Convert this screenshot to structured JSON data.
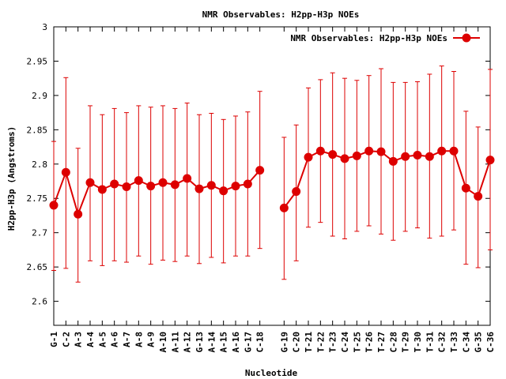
{
  "chart_data": {
    "type": "line",
    "title": "NMR Observables: H2pp-H3p NOEs",
    "xlabel": "Nucleotide",
    "ylabel": "H2pp-H3p (Angstroms)",
    "ylim": [
      2.565,
      3.0
    ],
    "yticks": [
      "3",
      "2.95",
      "2.9",
      "2.85",
      "2.8",
      "2.75",
      "2.7",
      "2.65",
      "2.6"
    ],
    "ytick_values": [
      3.0,
      2.95,
      2.9,
      2.85,
      2.8,
      2.75,
      2.7,
      2.65,
      2.6
    ],
    "legend_position": "top-right",
    "line_color": "#dd0000",
    "categories": [
      "G-1",
      "C-2",
      "A-3",
      "A-4",
      "A-5",
      "A-6",
      "A-7",
      "A-8",
      "A-9",
      "A-10",
      "A-11",
      "A-12",
      "G-13",
      "A-14",
      "A-15",
      "A-16",
      "G-17",
      "C-18",
      "G-19",
      "C-20",
      "T-21",
      "T-22",
      "T-23",
      "C-24",
      "T-25",
      "T-26",
      "T-27",
      "C-28",
      "T-29",
      "T-30",
      "T-31",
      "C-32",
      "T-33",
      "C-34",
      "G-35",
      "C-36"
    ],
    "positions": [
      1,
      2,
      3,
      4,
      5,
      6,
      7,
      8,
      9,
      10,
      11,
      12,
      13,
      14,
      15,
      16,
      17,
      18,
      20,
      21,
      22,
      23,
      24,
      25,
      26,
      27,
      28,
      29,
      30,
      31,
      32,
      33,
      34,
      35,
      36,
      37
    ],
    "xlim": [
      1,
      37
    ],
    "segments": [
      [
        0,
        17
      ],
      [
        18,
        35
      ]
    ],
    "series": [
      {
        "name": "NMR Observables: H2pp-H3p NOEs",
        "values": [
          2.74,
          2.788,
          2.727,
          2.773,
          2.763,
          2.771,
          2.767,
          2.776,
          2.768,
          2.773,
          2.77,
          2.779,
          2.764,
          2.769,
          2.761,
          2.768,
          2.771,
          2.791,
          2.736,
          2.76,
          2.81,
          2.819,
          2.814,
          2.808,
          2.812,
          2.819,
          2.818,
          2.804,
          2.811,
          2.813,
          2.811,
          2.819,
          2.819,
          2.765,
          2.753,
          2.806
        ],
        "err_low": [
          2.645,
          2.648,
          2.628,
          2.659,
          2.652,
          2.659,
          2.657,
          2.666,
          2.654,
          2.66,
          2.658,
          2.666,
          2.655,
          2.664,
          2.656,
          2.666,
          2.666,
          2.677,
          2.632,
          2.659,
          2.708,
          2.715,
          2.695,
          2.691,
          2.702,
          2.71,
          2.698,
          2.689,
          2.702,
          2.707,
          2.692,
          2.695,
          2.704,
          2.654,
          2.649,
          2.675
        ],
        "err_high": [
          2.833,
          2.926,
          2.823,
          2.885,
          2.872,
          2.881,
          2.875,
          2.885,
          2.883,
          2.885,
          2.881,
          2.889,
          2.872,
          2.874,
          2.865,
          2.87,
          2.876,
          2.906,
          2.839,
          2.857,
          2.911,
          2.923,
          2.933,
          2.925,
          2.922,
          2.929,
          2.939,
          2.919,
          2.919,
          2.92,
          2.931,
          2.943,
          2.935,
          2.877,
          2.854,
          2.938
        ]
      }
    ]
  }
}
